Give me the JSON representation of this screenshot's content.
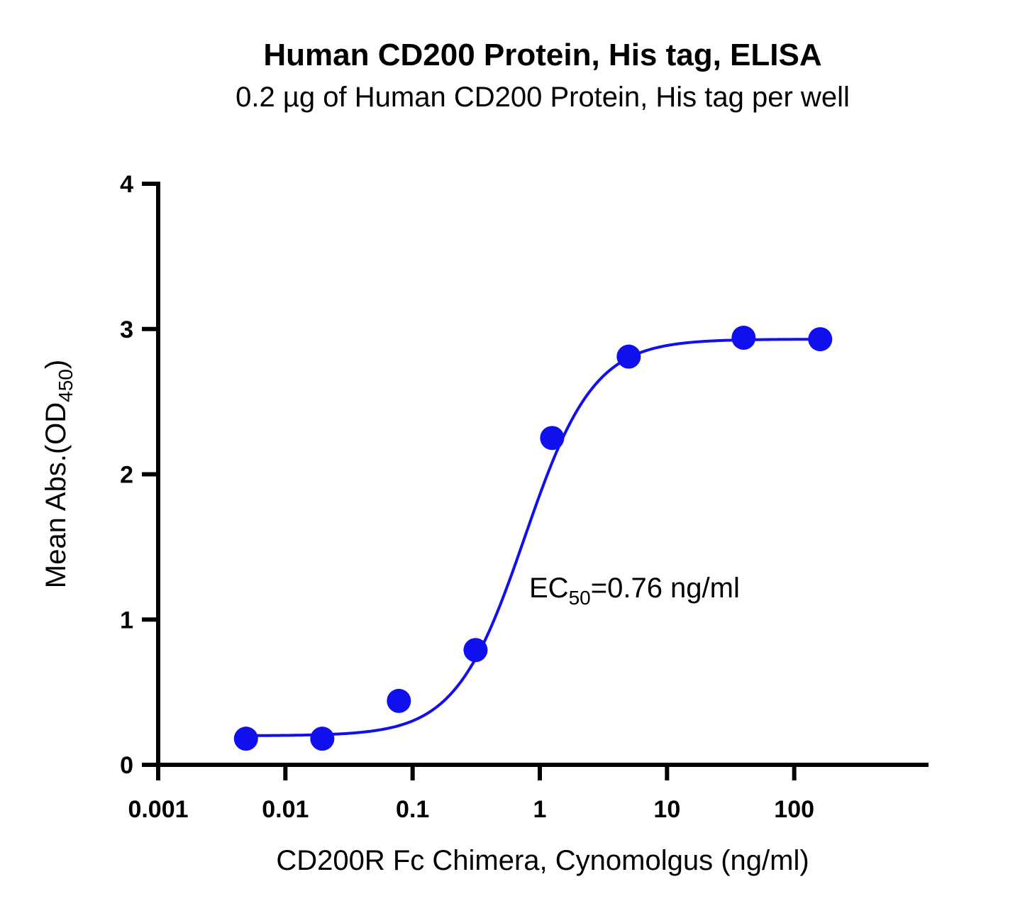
{
  "chart_data": {
    "type": "scatter",
    "title": "Human CD200 Protein, His tag, ELISA",
    "subtitle": "0.2 µg of Human CD200 Protein, His tag per well",
    "xlabel": "CD200R Fc Chimera, Cynomolgus (ng/ml)",
    "ylabel": {
      "main": "Mean Abs.(OD",
      "sub": "450",
      "close": ")"
    },
    "x_scale": "log",
    "xlim": [
      0.001,
      1000
    ],
    "ylim": [
      0,
      4
    ],
    "x_ticks": [
      0.001,
      0.01,
      0.1,
      1,
      10,
      100
    ],
    "x_tick_labels": [
      "0.001",
      "0.01",
      "0.1",
      "1",
      "10",
      "100"
    ],
    "y_ticks": [
      0,
      1,
      2,
      3,
      4
    ],
    "y_tick_labels": [
      "0",
      "1",
      "2",
      "3",
      "4"
    ],
    "grid": false,
    "series": [
      {
        "x": [
          0.0049,
          0.0195,
          0.078,
          0.3125,
          1.25,
          5,
          40,
          160
        ],
        "y": [
          0.18,
          0.18,
          0.44,
          0.79,
          2.25,
          2.81,
          2.94,
          2.93
        ],
        "color": "#1010EE",
        "fit": {
          "model": "4PL",
          "bottom": 0.2,
          "top": 2.93,
          "ec50": 0.76,
          "hill": 1.6
        }
      }
    ],
    "annotation": {
      "prefix": "EC",
      "sub": "50",
      "suffix": "=0.76 ng/ml"
    }
  }
}
